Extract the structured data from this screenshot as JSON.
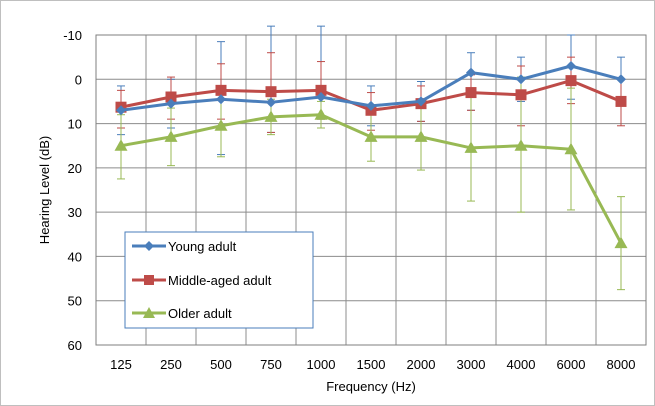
{
  "chart_data": {
    "type": "line",
    "xlabel": "Frequency  (Hz)",
    "ylabel": "Hearing Level (dB)",
    "categories": [
      "125",
      "250",
      "500",
      "750",
      "1000",
      "1500",
      "2000",
      "3000",
      "4000",
      "6000",
      "8000"
    ],
    "ylim": [
      -10,
      60
    ],
    "y_reversed": true,
    "y_ticks": [
      "-10",
      "0",
      "10",
      "20",
      "30",
      "40",
      "50",
      "60"
    ],
    "grid": true,
    "legend_position": "bottom-left",
    "series": [
      {
        "name": "Young adult",
        "color": "#4a7ebb",
        "marker": "diamond",
        "values": [
          7,
          5.5,
          4.5,
          5.2,
          4,
          6,
          5,
          -1.5,
          0,
          -3,
          0
        ],
        "error_low": [
          1.5,
          0,
          -8.5,
          -12,
          -12,
          1.5,
          0.5,
          -6,
          -5,
          -10,
          -5
        ],
        "error_high": [
          12.5,
          11,
          17,
          12,
          9,
          10.5,
          9.5,
          7,
          5,
          4.5,
          5
        ]
      },
      {
        "name": "Middle-aged adult",
        "color": "#be4b48",
        "marker": "square",
        "values": [
          6.3,
          4,
          2.5,
          2.8,
          2.5,
          7,
          5.5,
          3,
          3.5,
          0.3,
          5
        ],
        "error_low": [
          2.5,
          -0.5,
          -3.5,
          -6,
          -4,
          3,
          1.5,
          -1,
          -3,
          -5,
          0
        ],
        "error_high": [
          11,
          9,
          9,
          12,
          9,
          11.5,
          9.5,
          7,
          10.5,
          5.5,
          10.5
        ]
      },
      {
        "name": "Older adult",
        "color": "#98b954",
        "marker": "triangle",
        "values": [
          15,
          13,
          10.5,
          8.5,
          8,
          13,
          13,
          15.5,
          15,
          15.8,
          37
        ],
        "error_low": [
          8,
          6.5,
          3.5,
          4.5,
          5,
          7.5,
          5.5,
          3,
          -0.5,
          2,
          26.5
        ],
        "error_high": [
          22.5,
          19.5,
          17.5,
          12.5,
          11,
          18.5,
          20.5,
          27.5,
          30,
          29.5,
          47.5
        ]
      }
    ]
  }
}
